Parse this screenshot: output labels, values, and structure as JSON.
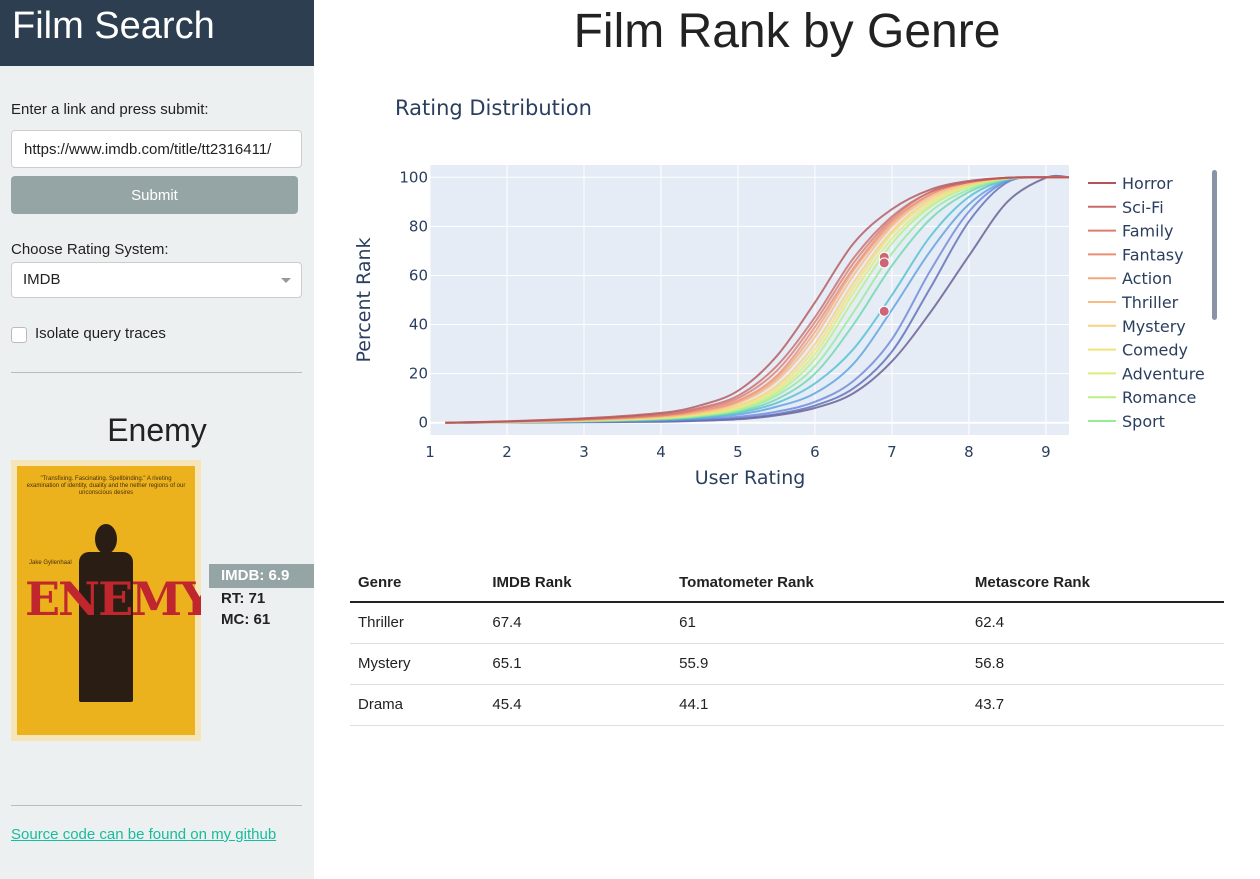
{
  "sidebar": {
    "app_title": "Film Search",
    "link_label": "Enter a link and press submit:",
    "link_value": "https://www.imdb.com/title/tt2316411/",
    "submit_label": "Submit",
    "rating_label": "Choose Rating System:",
    "rating_selected": "IMDB",
    "isolate_label": "Isolate query traces",
    "film_title": "Enemy",
    "poster": {
      "blurb": "\"Transfixing. Fascinating. Spellbinding.\" A riveting examination of identity, duality and the nether regions of our unconscious desires",
      "actor": "Jake Gyllenhaal",
      "title": "ENEMY"
    },
    "scores": {
      "imdb": "IMDB: 6.9",
      "rt": "RT: 71",
      "mc": "MC: 61"
    },
    "github_link": "Source code can be found on my github"
  },
  "main": {
    "title": "Film Rank by Genre"
  },
  "chart_data": {
    "type": "line",
    "title": "Rating Distribution",
    "xlabel": "User Rating",
    "ylabel": "Percent Rank",
    "xlim": [
      1,
      9.3
    ],
    "ylim": [
      -5,
      105
    ],
    "xticks": [
      1,
      2,
      3,
      4,
      5,
      6,
      7,
      8,
      9
    ],
    "yticks": [
      0,
      20,
      40,
      60,
      80,
      100
    ],
    "grid": true,
    "legend_position": "right",
    "x": [
      1.2,
      2,
      3,
      4,
      4.5,
      5,
      5.5,
      6,
      6.5,
      7,
      7.5,
      8,
      8.5,
      9,
      9.3
    ],
    "series": [
      {
        "name": "Horror",
        "color": "#b2545a",
        "values": [
          0,
          0.6,
          1.8,
          4,
          7,
          13,
          27,
          49,
          73,
          87,
          95,
          98.5,
          99.8,
          100,
          100
        ]
      },
      {
        "name": "Sci-Fi",
        "color": "#c96b6b",
        "values": [
          0,
          0.5,
          1.5,
          3.5,
          6,
          11,
          23,
          43,
          67,
          84,
          94,
          98,
          99.8,
          100,
          100
        ]
      },
      {
        "name": "Family",
        "color": "#dd7e6b",
        "values": [
          0,
          0.5,
          1.4,
          3,
          5.5,
          10,
          21,
          41,
          65,
          83,
          94,
          98,
          99.8,
          100,
          100
        ]
      },
      {
        "name": "Fantasy",
        "color": "#ec8e74",
        "values": [
          0,
          0.4,
          1.3,
          3,
          5,
          9,
          19,
          39,
          63,
          82,
          93,
          98,
          99.8,
          100,
          100
        ]
      },
      {
        "name": "Action",
        "color": "#f4a67a",
        "values": [
          0,
          0.4,
          1.2,
          2.7,
          4.6,
          8.5,
          18,
          37,
          62,
          81,
          93,
          98,
          99.7,
          100,
          100
        ]
      },
      {
        "name": "Thriller",
        "color": "#f8bc82",
        "values": [
          0,
          0.4,
          1.1,
          2.5,
          4.2,
          8,
          17,
          35,
          60,
          80,
          92,
          97.5,
          99.7,
          100,
          100
        ]
      },
      {
        "name": "Mystery",
        "color": "#f7d27f",
        "values": [
          0,
          0.3,
          1,
          2.2,
          3.8,
          7,
          15,
          32,
          57,
          78,
          91,
          97,
          99.6,
          100,
          100
        ]
      },
      {
        "name": "Comedy",
        "color": "#f2e27c",
        "values": [
          0,
          0.3,
          0.9,
          2,
          3.5,
          6.5,
          14,
          30,
          55,
          77,
          90,
          97,
          99.6,
          100,
          100
        ]
      },
      {
        "name": "Adventure",
        "color": "#dbee7a",
        "values": [
          0,
          0.3,
          0.9,
          1.9,
          3.3,
          6,
          13,
          28,
          53,
          75,
          89,
          96.5,
          99.5,
          100,
          100
        ]
      },
      {
        "name": "Romance",
        "color": "#b9ef84",
        "values": [
          0,
          0.3,
          0.8,
          1.8,
          3,
          5.5,
          12,
          26,
          50,
          73,
          88,
          96,
          99.5,
          100,
          100
        ]
      },
      {
        "name": "Sport",
        "color": "#93ec96",
        "values": [
          0,
          0.2,
          0.7,
          1.6,
          2.7,
          5,
          11,
          23,
          45,
          69,
          86,
          95,
          99.4,
          100,
          100
        ]
      },
      {
        "name": "",
        "color": "#6ed7ad",
        "values": [
          0,
          0.2,
          0.6,
          1.4,
          2.4,
          4.5,
          9.5,
          20,
          40,
          64,
          83,
          94,
          99.3,
          100,
          100
        ]
      },
      {
        "name": "",
        "color": "#4fbfd0",
        "values": [
          0,
          0.2,
          0.6,
          1.3,
          2.2,
          4,
          8,
          16,
          30,
          52,
          76,
          92,
          99,
          100,
          100
        ]
      },
      {
        "name": "",
        "color": "#5aa0e0",
        "values": [
          0,
          0.2,
          0.5,
          1.1,
          1.9,
          3.3,
          6.5,
          12,
          24,
          46,
          70,
          89,
          98.7,
          100,
          100
        ]
      },
      {
        "name": "",
        "color": "#6b86d8",
        "values": [
          0,
          0.1,
          0.4,
          0.8,
          1.4,
          2.4,
          4.5,
          8.5,
          17,
          34,
          62,
          86,
          98.5,
          100,
          100
        ]
      },
      {
        "name": "",
        "color": "#5a6bb8",
        "values": [
          0,
          0.1,
          0.3,
          0.6,
          1,
          1.8,
          3.5,
          7,
          14,
          29,
          55,
          82,
          98,
          100,
          100
        ]
      },
      {
        "name": "",
        "color": "#645a8e",
        "values": [
          0,
          0.1,
          0.2,
          0.4,
          0.8,
          1.4,
          3,
          6,
          12,
          25,
          45,
          68,
          90,
          99.8,
          100
        ]
      }
    ],
    "markers": [
      {
        "x": 6.9,
        "y": 67.4,
        "color": "#cc6677"
      },
      {
        "x": 6.9,
        "y": 65.1,
        "color": "#cc6677"
      },
      {
        "x": 6.9,
        "y": 45.4,
        "color": "#cc6677"
      }
    ]
  },
  "table": {
    "headers": [
      "Genre",
      "IMDB Rank",
      "Tomatometer Rank",
      "Metascore Rank"
    ],
    "rows": [
      [
        "Thriller",
        "67.4",
        "61",
        "62.4"
      ],
      [
        "Mystery",
        "65.1",
        "55.9",
        "56.8"
      ],
      [
        "Drama",
        "45.4",
        "44.1",
        "43.7"
      ]
    ]
  }
}
